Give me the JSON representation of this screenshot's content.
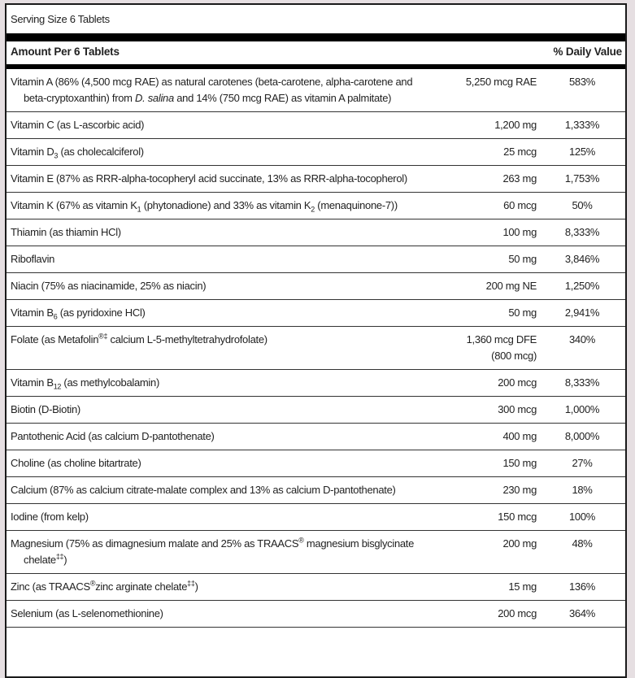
{
  "serving_size": "Serving Size 6 Tablets",
  "header": {
    "amount_label": "Amount Per 6 Tablets",
    "dv_label": "% Daily Value"
  },
  "rows": [
    {
      "name": [
        {
          "t": "Vitamin A (86% (4,500 mcg RAE) as natural carotenes (beta-carotene, alpha-carotene and beta-cryptoxanthin) from "
        },
        {
          "t": "D. salina",
          "s": "i"
        },
        {
          "t": " and 14% (750 mcg RAE) as vitamin A palmitate)"
        }
      ],
      "amount": [
        "5,250 mcg RAE"
      ],
      "dv": "583%"
    },
    {
      "name": [
        {
          "t": "Vitamin C (as L-ascorbic acid)"
        }
      ],
      "amount": [
        "1,200 mg"
      ],
      "dv": "1,333%"
    },
    {
      "name": [
        {
          "t": "Vitamin D"
        },
        {
          "t": "3",
          "s": "sub"
        },
        {
          "t": " (as cholecalciferol)"
        }
      ],
      "amount": [
        "25 mcg"
      ],
      "dv": "125%"
    },
    {
      "name": [
        {
          "t": "Vitamin E (87% as RRR-alpha-tocopheryl acid succinate, 13% as RRR-alpha-tocopherol)"
        }
      ],
      "amount": [
        "263 mg"
      ],
      "dv": "1,753%"
    },
    {
      "name": [
        {
          "t": "Vitamin K (67% as vitamin K"
        },
        {
          "t": "1",
          "s": "sub"
        },
        {
          "t": " (phytonadione) and 33% as vitamin K"
        },
        {
          "t": "2",
          "s": "sub"
        },
        {
          "t": " (menaquinone-7))"
        }
      ],
      "amount": [
        "60 mcg"
      ],
      "dv": "50%"
    },
    {
      "name": [
        {
          "t": "Thiamin (as thiamin HCl)"
        }
      ],
      "amount": [
        "100 mg"
      ],
      "dv": "8,333%"
    },
    {
      "name": [
        {
          "t": "Riboflavin"
        }
      ],
      "amount": [
        "50 mg"
      ],
      "dv": "3,846%"
    },
    {
      "name": [
        {
          "t": "Niacin (75% as niacinamide, 25% as niacin)"
        }
      ],
      "amount": [
        "200 mg NE"
      ],
      "dv": "1,250%"
    },
    {
      "name": [
        {
          "t": "Vitamin B"
        },
        {
          "t": "6",
          "s": "sub"
        },
        {
          "t": " (as pyridoxine HCl)"
        }
      ],
      "amount": [
        "50 mg"
      ],
      "dv": "2,941%"
    },
    {
      "name": [
        {
          "t": "Folate (as Metafolin"
        },
        {
          "t": "®‡",
          "s": "sup"
        },
        {
          "t": " calcium L-5-methyltetrahydrofolate)"
        }
      ],
      "amount": [
        "1,360 mcg DFE",
        "(800 mcg)"
      ],
      "dv": "340%"
    },
    {
      "name": [
        {
          "t": "Vitamin B"
        },
        {
          "t": "12",
          "s": "sub"
        },
        {
          "t": " (as methylcobalamin)"
        }
      ],
      "amount": [
        "200 mcg"
      ],
      "dv": "8,333%"
    },
    {
      "name": [
        {
          "t": "Biotin (D-Biotin)"
        }
      ],
      "amount": [
        "300 mcg"
      ],
      "dv": "1,000%"
    },
    {
      "name": [
        {
          "t": "Pantothenic Acid (as calcium D-pantothenate)"
        }
      ],
      "amount": [
        "400 mg"
      ],
      "dv": "8,000%"
    },
    {
      "name": [
        {
          "t": "Choline (as choline bitartrate)"
        }
      ],
      "amount": [
        "150 mg"
      ],
      "dv": "27%"
    },
    {
      "name": [
        {
          "t": "Calcium (87% as calcium citrate-malate complex and 13% as calcium D-pantothenate)"
        }
      ],
      "amount": [
        "230 mg"
      ],
      "dv": "18%"
    },
    {
      "name": [
        {
          "t": "Iodine (from kelp)"
        }
      ],
      "amount": [
        "150 mcg"
      ],
      "dv": "100%"
    },
    {
      "name": [
        {
          "t": "Magnesium (75% as dimagnesium malate and 25% as TRAACS"
        },
        {
          "t": "®",
          "s": "sup"
        },
        {
          "t": " magnesium bisglycinate chelate"
        },
        {
          "t": "‡‡",
          "s": "sup"
        },
        {
          "t": ")"
        }
      ],
      "amount": [
        "200 mg"
      ],
      "dv": "48%"
    },
    {
      "name": [
        {
          "t": "Zinc (as TRAACS"
        },
        {
          "t": "®",
          "s": "sup"
        },
        {
          "t": "zinc arginate chelate"
        },
        {
          "t": "‡‡",
          "s": "sup"
        },
        {
          "t": ")"
        }
      ],
      "amount": [
        "15 mg"
      ],
      "dv": "136%"
    },
    {
      "name": [
        {
          "t": "Selenium (as L-selenomethionine)"
        }
      ],
      "amount": [
        "200 mcg"
      ],
      "dv": "364%"
    }
  ]
}
